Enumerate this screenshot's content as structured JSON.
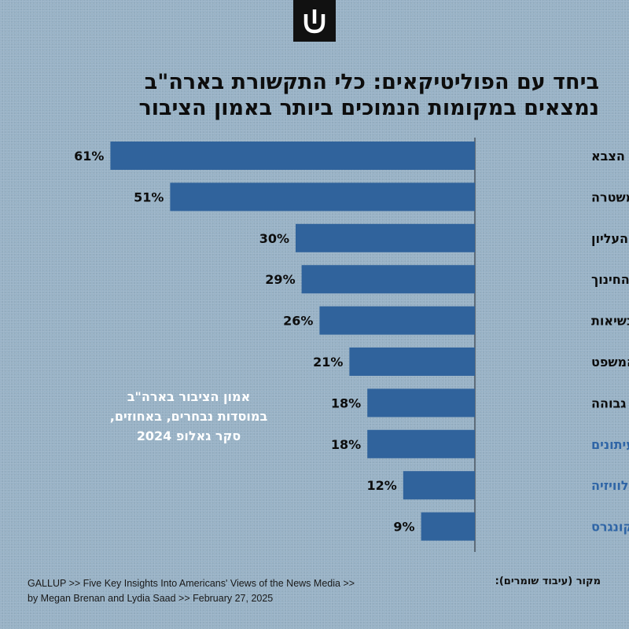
{
  "logo": {
    "icon": "shin-logo-icon",
    "color": "#111111"
  },
  "title": {
    "line1": "ביחד עם הפוליטיקאים: כלי התקשורת בארה\"ב",
    "line2": "נמצאים במקומות הנמוכים ביותר באמון הציבור"
  },
  "note": {
    "line1": "אמון הציבור בארה\"ב",
    "line2": "במוסדות נבחרים, באחוזים,",
    "line3": "סקר גאלופ 2024"
  },
  "source_label": "מקור (עיבוד שומרים):",
  "source": {
    "line1": "GALLUP >> Five Key Insights Into Americans' Views of the News Media >>",
    "line2": "by Megan Brenan and Lydia Saad >> February 27, 2025"
  },
  "colors": {
    "bar": "#30639c",
    "background": "#98b2c6",
    "label": "#0d0d0d",
    "media_label": "#2f65a6"
  },
  "chart_data": {
    "type": "bar",
    "orientation": "horizontal",
    "categories": [
      "הצבא",
      "המשטרה",
      "בית המשפט העליון",
      "מערכת החינוך",
      "מוסד הנשיאות",
      "בתי המשפט",
      "השכלה גבוהה",
      "עיתונים",
      "חדשות בטלוויזיה",
      "הקונגרס"
    ],
    "values": [
      61,
      51,
      30,
      29,
      26,
      21,
      18,
      18,
      12,
      9
    ],
    "value_labels": [
      "61%",
      "51%",
      "30%",
      "29%",
      "26%",
      "21%",
      "18%",
      "18%",
      "12%",
      "9%"
    ],
    "highlighted": [
      false,
      false,
      false,
      false,
      false,
      false,
      false,
      true,
      true,
      true
    ],
    "xlim": [
      0,
      61
    ]
  }
}
